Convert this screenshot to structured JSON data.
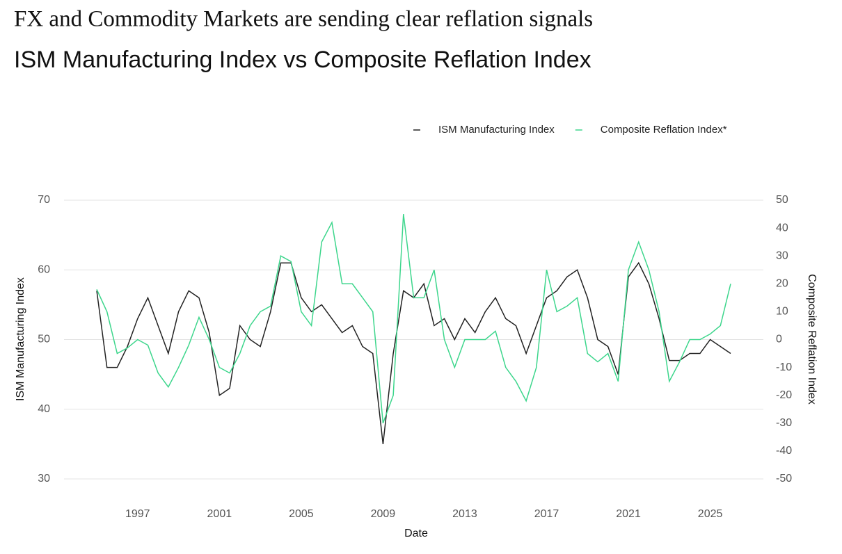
{
  "chart_data": {
    "type": "line",
    "heading": "FX and Commodity Markets are sending clear reflation signals",
    "title": "ISM Manufacturing Index vs Composite Reflation Index",
    "x_label": "Date",
    "y_label": "ISM Manufacturing Index",
    "y2_label": "Composite Reflation Index",
    "x": [
      1995.0,
      1995.5,
      1996.0,
      1996.5,
      1997.0,
      1997.5,
      1998.0,
      1998.5,
      1999.0,
      1999.5,
      2000.0,
      2000.5,
      2001.0,
      2001.5,
      2002.0,
      2002.5,
      2003.0,
      2003.5,
      2004.0,
      2004.5,
      2005.0,
      2005.5,
      2006.0,
      2006.5,
      2007.0,
      2007.5,
      2008.0,
      2008.5,
      2009.0,
      2009.5,
      2010.0,
      2010.5,
      2011.0,
      2011.5,
      2012.0,
      2012.5,
      2013.0,
      2013.5,
      2014.0,
      2014.5,
      2015.0,
      2015.5,
      2016.0,
      2016.5,
      2017.0,
      2017.5,
      2018.0,
      2018.5,
      2019.0,
      2019.5,
      2020.0,
      2020.5,
      2021.0,
      2021.5,
      2022.0,
      2022.5,
      2023.0,
      2023.5,
      2024.0,
      2024.5,
      2025.0,
      2025.5,
      2026.0
    ],
    "series": [
      {
        "name": "ISM Manufacturing Index",
        "color": "#222222",
        "axis": "y",
        "values": [
          57,
          46,
          46,
          49,
          53,
          56,
          52,
          48,
          54,
          57,
          56,
          51,
          42,
          43,
          52,
          50,
          49,
          54,
          61,
          61,
          56,
          54,
          55,
          53,
          51,
          52,
          49,
          48,
          35,
          48,
          57,
          56,
          58,
          52,
          53,
          50,
          53,
          51,
          54,
          56,
          53,
          52,
          48,
          52,
          56,
          57,
          59,
          60,
          56,
          50,
          49,
          45,
          59,
          61,
          58,
          53,
          47,
          47,
          48,
          48,
          50,
          49,
          48
        ]
      },
      {
        "name": "Composite Reflation Index*",
        "color": "#3dd68c",
        "axis": "y2",
        "values": [
          18,
          10,
          -5,
          -3,
          0,
          -2,
          -12,
          -17,
          -10,
          -2,
          8,
          0,
          -10,
          -12,
          -5,
          5,
          10,
          12,
          30,
          28,
          10,
          5,
          35,
          42,
          20,
          20,
          15,
          10,
          -30,
          -20,
          45,
          15,
          15,
          25,
          0,
          -10,
          0,
          0,
          0,
          3,
          -10,
          -15,
          -22,
          -10,
          25,
          10,
          12,
          15,
          -5,
          -8,
          -5,
          -15,
          25,
          35,
          25,
          10,
          -15,
          -8,
          0,
          0,
          2,
          5,
          20
        ]
      }
    ],
    "xlim": [
      1993.4,
      2027.6
    ],
    "xticks": [
      1997,
      2001,
      2005,
      2009,
      2013,
      2017,
      2021,
      2025
    ],
    "ylim": [
      30,
      70
    ],
    "yticks": [
      30,
      40,
      50,
      60,
      70
    ],
    "y2lim": [
      -50,
      50
    ],
    "y2ticks": [
      -50,
      -40,
      -30,
      -20,
      -10,
      0,
      10,
      20,
      30,
      40,
      50
    ],
    "grid": true
  }
}
